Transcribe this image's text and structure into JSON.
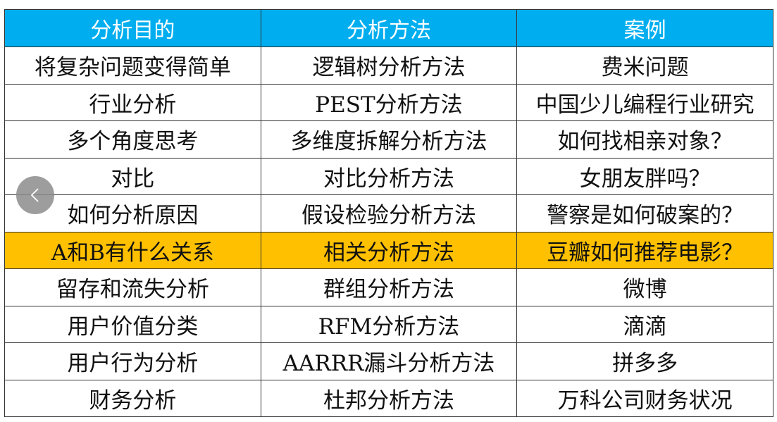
{
  "colors": {
    "header": "#00aeef",
    "highlight": "#ffc000"
  },
  "headers": [
    "分析目的",
    "分析方法",
    "案例"
  ],
  "highlight_row": 5,
  "rows": [
    [
      "将复杂问题变得简单",
      "逻辑树分析方法",
      "费米问题"
    ],
    [
      "行业分析",
      "PEST分析方法",
      "中国少儿编程行业研究"
    ],
    [
      "多个角度思考",
      "多维度拆解分析方法",
      "如何找相亲对象？"
    ],
    [
      "对比",
      "对比分析方法",
      "女朋友胖吗？"
    ],
    [
      "如何分析原因",
      "假设检验分析方法",
      "警察是如何破案的？"
    ],
    [
      "A和B有什么关系",
      "相关分析方法",
      "豆瓣如何推荐电影？"
    ],
    [
      "留存和流失分析",
      "群组分析方法",
      "微博"
    ],
    [
      "用户价值分类",
      "RFM分析方法",
      "滴滴"
    ],
    [
      "用户行为分析",
      "AARRR漏斗分析方法",
      "拼多多"
    ],
    [
      "财务分析",
      "杜邦分析方法",
      "万科公司财务状况"
    ]
  ],
  "back_button": {
    "icon": "chevron-left-icon"
  }
}
